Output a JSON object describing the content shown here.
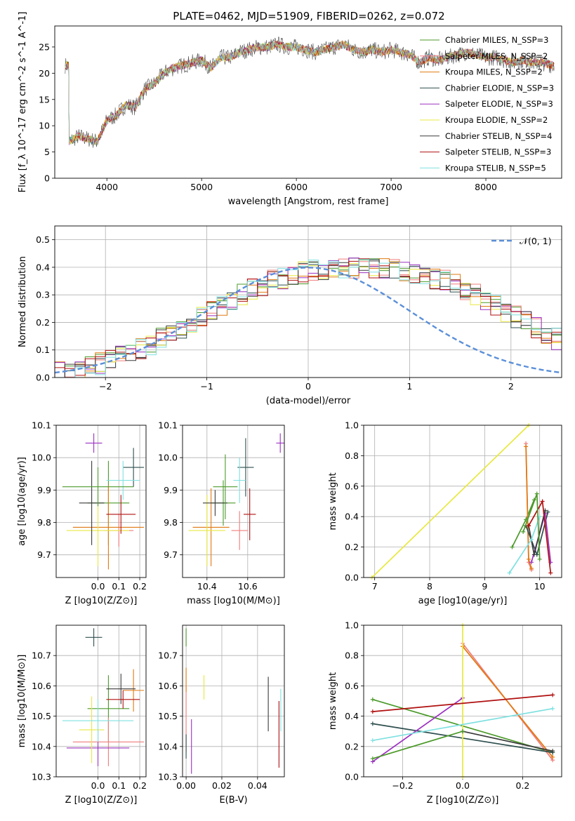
{
  "title": "PLATE=0462, MJD=51909, FIBERID=0262, z=0.072",
  "colors": [
    "#4c9a2a",
    "#f07c7c",
    "#e07a10",
    "#2f4f4f",
    "#9b30c0",
    "#e8e840",
    "#3a3a3a",
    "#b01010",
    "#7fe0e0"
  ],
  "chart_data": [
    {
      "id": "spectrum",
      "type": "line",
      "xlabel": "wavelength [Angstrom, rest frame]",
      "ylabel": "Flux [f_λ 10^-17 erg cm^-2 s^-1 A^-1]",
      "xlim": [
        3450,
        8800
      ],
      "ylim": [
        0,
        29
      ],
      "xticks": [
        4000,
        5000,
        6000,
        7000,
        8000
      ],
      "yticks": [
        0,
        5,
        10,
        15,
        20,
        25
      ],
      "grid": false,
      "legend_position": "right",
      "legend": [
        {
          "label": "Chabrier MILES, N_SSP=3"
        },
        {
          "label": "Salpeter MILES, N_SSP=2"
        },
        {
          "label": "Kroupa MILES, N_SSP=2"
        },
        {
          "label": "Chabrier ELODIE, N_SSP=3"
        },
        {
          "label": "Salpeter ELODIE, N_SSP=3"
        },
        {
          "label": "Kroupa ELODIE, N_SSP=2"
        },
        {
          "label": "Chabrier STELIB, N_SSP=4"
        },
        {
          "label": "Salpeter STELIB, N_SSP=3"
        },
        {
          "label": "Kroupa STELIB, N_SSP=5"
        }
      ],
      "data_x": [
        3600,
        3700,
        3800,
        3900,
        4000,
        4100,
        4200,
        4300,
        4400,
        4500,
        4600,
        4700,
        4800,
        4900,
        5000,
        5100,
        5200,
        5300,
        5400,
        5500,
        5600,
        5700,
        5800,
        5900,
        6000,
        6100,
        6200,
        6300,
        6400,
        6500,
        6600,
        6700,
        6800,
        6900,
        7000,
        7100,
        7200,
        7300,
        7400,
        7500,
        7600,
        7700,
        7800,
        7900,
        8000,
        8100,
        8200,
        8300,
        8400,
        8500,
        8600,
        8700
      ],
      "data_y": [
        7,
        8,
        7.5,
        7,
        11,
        12,
        14,
        13.5,
        17,
        18,
        20,
        21,
        21.5,
        22,
        22.5,
        21,
        23,
        23,
        24,
        24.5,
        25,
        25,
        25.5,
        25,
        25,
        24.5,
        24,
        24.5,
        25,
        25.5,
        24.5,
        24,
        24.5,
        24,
        24.5,
        24,
        23.5,
        22,
        23,
        22.5,
        23,
        23.5,
        24,
        23.5,
        23,
        23,
        22.5,
        22,
        22.5,
        22,
        22,
        21.5
      ]
    },
    {
      "id": "residuals",
      "type": "line",
      "xlabel": "(data-model)/error",
      "ylabel": "Normed distribution",
      "xlim": [
        -2.5,
        2.5
      ],
      "ylim": [
        0,
        0.55
      ],
      "xticks": [
        -2,
        -1,
        0,
        1,
        2
      ],
      "yticks": [
        0.0,
        0.1,
        0.2,
        0.3,
        0.4,
        0.5
      ],
      "grid": true,
      "legend_position": "top-right",
      "legend": [
        {
          "label": "𝒩(0, 1)"
        }
      ],
      "bin_width": 0.1,
      "bin_start": -2.5,
      "hist": [
        0.018,
        0.025,
        0.03,
        0.038,
        0.05,
        0.062,
        0.075,
        0.09,
        0.105,
        0.12,
        0.14,
        0.16,
        0.178,
        0.2,
        0.22,
        0.24,
        0.26,
        0.28,
        0.3,
        0.32,
        0.335,
        0.35,
        0.36,
        0.37,
        0.38,
        0.39,
        0.392,
        0.395,
        0.398,
        0.4,
        0.4,
        0.398,
        0.395,
        0.392,
        0.39,
        0.38,
        0.37,
        0.36,
        0.35,
        0.335,
        0.32,
        0.3,
        0.28,
        0.26,
        0.24,
        0.22,
        0.2,
        0.178,
        0.16,
        0.14
      ]
    },
    {
      "id": "age_vs_Z",
      "type": "scatter",
      "xlabel": "Z [log10(Z/Z⊙)]",
      "ylabel": "age  [log10(age/yr)]",
      "xlim": [
        -0.2,
        0.23
      ],
      "ylim": [
        9.63,
        10.1
      ],
      "xticks": [
        0.0,
        0.1,
        0.2
      ],
      "xticklabels": [
        "0.0",
        "0.1",
        "0.2"
      ],
      "yticks": [
        9.7,
        9.8,
        9.9,
        10.0,
        10.1
      ],
      "points": [
        {
          "x": 0.05,
          "y": 9.86,
          "ex": 0.1,
          "ey": 0.13
        },
        {
          "x": 0.1,
          "y": 9.775,
          "ex": 0.07,
          "ey": 0.05
        },
        {
          "x": 0.05,
          "y": 9.785,
          "ex": 0.17,
          "ey": 0.13
        },
        {
          "x": 0.17,
          "y": 9.97,
          "ex": 0.05,
          "ey": 0.06
        },
        {
          "x": -0.02,
          "y": 10.045,
          "ex": 0.04,
          "ey": 0.03
        },
        {
          "x": 0.0,
          "y": 9.775,
          "ex": 0.15,
          "ey": 0.11
        },
        {
          "x": -0.03,
          "y": 9.86,
          "ex": 0.06,
          "ey": 0.13
        },
        {
          "x": 0.11,
          "y": 9.825,
          "ex": 0.07,
          "ey": 0.06
        },
        {
          "x": 0.12,
          "y": 9.93,
          "ex": 0.08,
          "ey": 0.06
        },
        {
          "x": 0.0,
          "y": 9.91,
          "ex": 0.17,
          "ey": 0.06
        }
      ]
    },
    {
      "id": "age_vs_mass",
      "type": "scatter",
      "xlabel": "mass [log10(M/M⊙)]",
      "ylabel": "",
      "xlim": [
        10.28,
        10.78
      ],
      "ylim": [
        9.63,
        10.1
      ],
      "xticks": [
        10.4,
        10.6
      ],
      "xticklabels": [
        "10.4",
        "10.6"
      ],
      "yticks": [
        9.7,
        9.8,
        9.9,
        10.0,
        10.1
      ],
      "points": [
        {
          "x": 10.48,
          "y": 9.86,
          "ex": 0.06,
          "ey": 0.07
        },
        {
          "x": 10.56,
          "y": 9.775,
          "ex": 0.04,
          "ey": 0.06
        },
        {
          "x": 10.42,
          "y": 9.785,
          "ex": 0.09,
          "ey": 0.12
        },
        {
          "x": 10.59,
          "y": 9.97,
          "ex": 0.04,
          "ey": 0.09
        },
        {
          "x": 10.76,
          "y": 10.045,
          "ex": 0.02,
          "ey": 0.03
        },
        {
          "x": 10.4,
          "y": 9.775,
          "ex": 0.09,
          "ey": 0.11
        },
        {
          "x": 10.44,
          "y": 9.86,
          "ex": 0.06,
          "ey": 0.04
        },
        {
          "x": 10.61,
          "y": 9.825,
          "ex": 0.03,
          "ey": 0.08
        },
        {
          "x": 10.56,
          "y": 9.93,
          "ex": 0.03,
          "ey": 0.07
        },
        {
          "x": 10.49,
          "y": 9.91,
          "ex": 0.06,
          "ey": 0.1
        }
      ]
    },
    {
      "id": "weight_vs_age",
      "type": "line",
      "xlabel": "age  [log10(age/yr)]",
      "ylabel": "mass weight",
      "xlim": [
        6.8,
        10.4
      ],
      "ylim": [
        0,
        1
      ],
      "xticks": [
        7,
        8,
        9,
        10
      ],
      "yticks": [
        0.0,
        0.2,
        0.4,
        0.6,
        0.8,
        1.0
      ],
      "series": [
        {
          "x": [
            9.5,
            9.75,
            9.9
          ],
          "y": [
            0.2,
            0.38,
            0.51
          ]
        },
        {
          "x": [
            9.75,
            9.8,
            9.85
          ],
          "y": [
            0.88,
            0.1,
            0.05
          ]
        },
        {
          "x": [
            9.75,
            9.8,
            9.85
          ],
          "y": [
            0.86,
            0.12,
            0.06
          ]
        },
        {
          "x": [
            9.75,
            9.95,
            10.15
          ],
          "y": [
            0.34,
            0.15,
            0.43
          ]
        },
        {
          "x": [
            9.85,
            10.1,
            10.2
          ],
          "y": [
            0.1,
            0.42,
            0.1
          ]
        },
        {
          "x": [
            6.95,
            9.8
          ],
          "y": [
            0.0,
            1.0
          ]
        },
        {
          "x": [
            9.8,
            9.9,
            10.1
          ],
          "y": [
            0.34,
            0.15,
            0.44
          ]
        },
        {
          "x": [
            9.8,
            10.05,
            10.2
          ],
          "y": [
            0.34,
            0.5,
            0.03
          ]
        },
        {
          "x": [
            9.45,
            9.85,
            10.0
          ],
          "y": [
            0.03,
            0.25,
            0.4
          ]
        },
        {
          "x": [
            9.7,
            9.95,
            10.0
          ],
          "y": [
            0.3,
            0.55,
            0.12
          ]
        }
      ]
    },
    {
      "id": "mass_vs_Z",
      "type": "scatter",
      "xlabel": "Z [log10(Z/Z⊙)]",
      "ylabel": "mass [log10(M/M⊙)]",
      "xlim": [
        -0.2,
        0.23
      ],
      "ylim": [
        10.3,
        10.8
      ],
      "xticks": [
        0.0,
        0.1,
        0.2
      ],
      "xticklabels": [
        "0.0",
        "0.1",
        "0.2"
      ],
      "yticks": [
        10.3,
        10.4,
        10.5,
        10.6,
        10.7
      ],
      "points": [
        {
          "x": 0.05,
          "y": 10.525,
          "ex": 0.1,
          "ey": 0.11
        },
        {
          "x": 0.05,
          "y": 10.415,
          "ex": 0.17,
          "ey": 0.08
        },
        {
          "x": 0.17,
          "y": 10.585,
          "ex": 0.05,
          "ey": 0.07
        },
        {
          "x": -0.02,
          "y": 10.76,
          "ex": 0.04,
          "ey": 0.03
        },
        {
          "x": 0.0,
          "y": 10.395,
          "ex": 0.15,
          "ey": 0.06
        },
        {
          "x": -0.03,
          "y": 10.455,
          "ex": 0.06,
          "ey": 0.11
        },
        {
          "x": 0.11,
          "y": 10.59,
          "ex": 0.07,
          "ey": 0.05
        },
        {
          "x": 0.12,
          "y": 10.555,
          "ex": 0.08,
          "ey": 0.03
        },
        {
          "x": 0.0,
          "y": 10.485,
          "ex": 0.17,
          "ey": 0.07
        }
      ]
    },
    {
      "id": "mass_vs_ebv",
      "type": "scatter",
      "xlabel": "E(B-V)",
      "ylabel": "",
      "xlim": [
        -0.002,
        0.055
      ],
      "ylim": [
        10.3,
        10.8
      ],
      "xticks": [
        0.0,
        0.02,
        0.04
      ],
      "xticklabels": [
        "0.00",
        "0.02",
        "0.04"
      ],
      "yticks": [
        10.3,
        10.4,
        10.5,
        10.6,
        10.7
      ],
      "points": [
        {
          "x": 0.0,
          "y": 10.76,
          "ey": 0.03
        },
        {
          "x": 0.0,
          "y": 10.49,
          "ey": 0.11
        },
        {
          "x": 0.0,
          "y": 10.62,
          "ey": 0.04
        },
        {
          "x": 0.0,
          "y": 10.4,
          "ey": 0.04
        },
        {
          "x": 0.003,
          "y": 10.4,
          "ey": 0.09
        },
        {
          "x": 0.01,
          "y": 10.595,
          "ey": 0.04
        },
        {
          "x": 0.046,
          "y": 10.54,
          "ey": 0.09
        },
        {
          "x": 0.052,
          "y": 10.44,
          "ey": 0.11
        },
        {
          "x": 0.053,
          "y": 10.52,
          "ey": 0.07
        }
      ]
    },
    {
      "id": "weight_vs_Z",
      "type": "line",
      "xlabel": "Z [log10(Z/Z⊙)]",
      "ylabel": "mass weight",
      "xlim": [
        -0.33,
        0.33
      ],
      "ylim": [
        0,
        1
      ],
      "xticks": [
        -0.2,
        0.0,
        0.2
      ],
      "xticklabels": [
        "−0.2",
        "0.0",
        "0.2"
      ],
      "yticks": [
        0.0,
        0.2,
        0.4,
        0.6,
        0.8,
        1.0
      ],
      "series": [
        {
          "x": [
            -0.3,
            0.3
          ],
          "y": [
            0.51,
            0.16
          ]
        },
        {
          "x": [
            0.0,
            0.3
          ],
          "y": [
            0.88,
            0.11
          ]
        },
        {
          "x": [
            0.0,
            0.3
          ],
          "y": [
            0.86,
            0.13
          ]
        },
        {
          "x": [
            -0.3,
            0.3
          ],
          "y": [
            0.35,
            0.16
          ]
        },
        {
          "x": [
            -0.3,
            0.0
          ],
          "y": [
            0.1,
            0.52
          ]
        },
        {
          "x": [
            0.0,
            0.0
          ],
          "y": [
            0.0,
            1.0
          ]
        },
        {
          "x": [
            0.0,
            0.3
          ],
          "y": [
            0.3,
            0.17
          ]
        },
        {
          "x": [
            -0.3,
            0.3
          ],
          "y": [
            0.43,
            0.54
          ]
        },
        {
          "x": [
            -0.3,
            0.3
          ],
          "y": [
            0.24,
            0.45
          ]
        },
        {
          "x": [
            -0.3,
            0.0
          ],
          "y": [
            0.12,
            0.3
          ]
        }
      ]
    }
  ]
}
